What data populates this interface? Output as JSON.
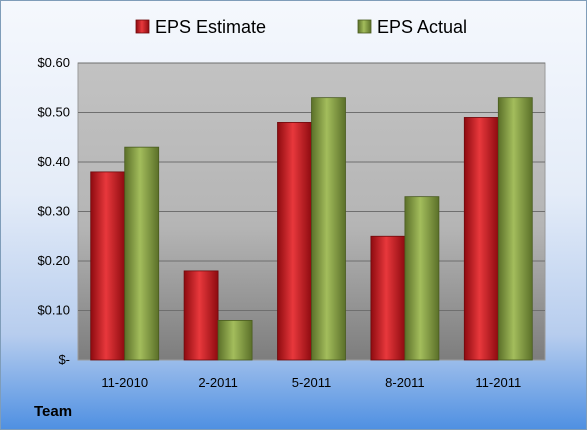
{
  "chart_data": {
    "type": "bar",
    "categories": [
      "11-2010",
      "2-2011",
      "5-2011",
      "8-2011",
      "11-2011"
    ],
    "series": [
      {
        "name": "EPS Estimate",
        "color": "#c0161c",
        "values": [
          0.38,
          0.18,
          0.48,
          0.25,
          0.49
        ]
      },
      {
        "name": "EPS Actual",
        "color": "#7f9a3e",
        "values": [
          0.43,
          0.08,
          0.53,
          0.33,
          0.53
        ]
      }
    ],
    "y_ticks": [
      "$-",
      "$0.10",
      "$0.20",
      "$0.30",
      "$0.40",
      "$0.50",
      "$0.60"
    ],
    "ylim": [
      0,
      0.6
    ],
    "grid": true,
    "legend_position": "top"
  },
  "footer": {
    "label": "Team"
  }
}
